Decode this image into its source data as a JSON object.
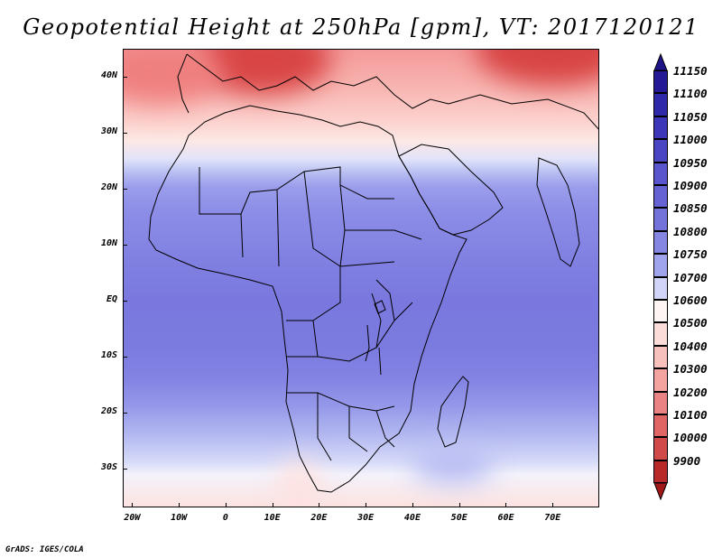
{
  "title": "Geopotential Height at 250hPa [gpm], VT: 2017120121",
  "credit": "GrADS: IGES/COLA",
  "lat_labels": [
    "40N",
    "30N",
    "20N",
    "10N",
    "EQ",
    "10S",
    "20S",
    "30S"
  ],
  "lat_values": [
    40,
    30,
    20,
    10,
    0,
    -10,
    -20,
    -30
  ],
  "lon_labels": [
    "20W",
    "10W",
    "0",
    "10E",
    "20E",
    "30E",
    "40E",
    "50E",
    "60E",
    "70E"
  ],
  "lon_values": [
    -20,
    -10,
    0,
    10,
    20,
    30,
    40,
    50,
    60,
    70
  ],
  "map_extent": {
    "lon": [
      -22,
      80
    ],
    "lat": [
      -37,
      45
    ]
  },
  "colorbar": {
    "levels": [
      "11150",
      "11100",
      "11050",
      "11000",
      "10950",
      "10900",
      "10850",
      "10800",
      "10750",
      "10700",
      "10600",
      "10500",
      "10400",
      "10300",
      "10200",
      "10100",
      "10000",
      "9900"
    ],
    "colors": [
      "#241a96",
      "#2f28a8",
      "#3e36b8",
      "#4b45c4",
      "#5a55cc",
      "#6662d4",
      "#7473da",
      "#8486e2",
      "#a0a4ec",
      "#d2d5f8",
      "#fdf5f3",
      "#fcdcd8",
      "#f8c0bc",
      "#f3a4a0",
      "#ea8484",
      "#e06666",
      "#d14a4a",
      "#b82a2a"
    ],
    "top_color": "#1e1488",
    "bottom_color": "#a01818"
  }
}
